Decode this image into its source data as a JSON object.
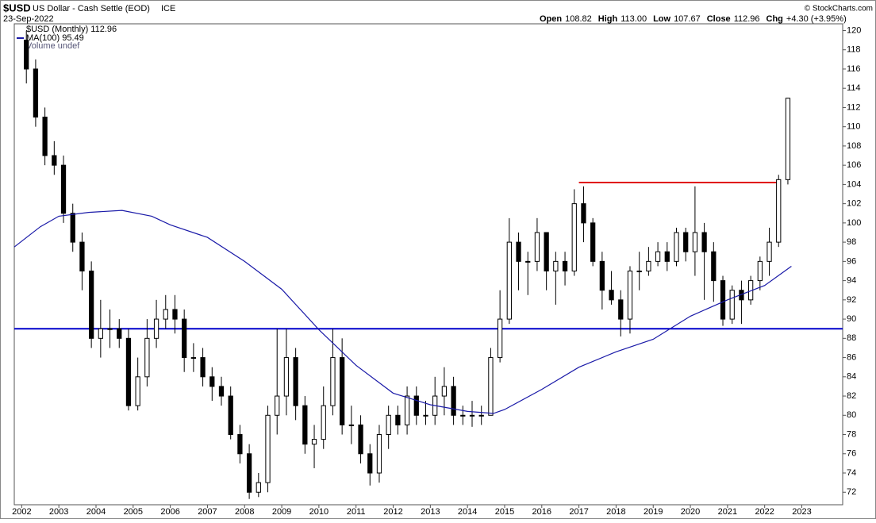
{
  "header": {
    "symbol": "$USD",
    "name": "US Dollar - Cash Settle (EOD)",
    "exchange": "ICE",
    "date": "23-Sep-2022",
    "quote": [
      {
        "label": "Open",
        "value": "108.82"
      },
      {
        "label": "High",
        "value": "113.00"
      },
      {
        "label": "Low",
        "value": "107.67"
      },
      {
        "label": "Close",
        "value": "112.96"
      },
      {
        "label": "Chg",
        "value": "+4.30 (+3.95%)"
      }
    ],
    "copyright": "© StockCharts.com",
    "legend": [
      "$USD (Monthly) 112.96",
      "MA(100) 95.49",
      "Volume undef"
    ]
  },
  "chart_data": {
    "type": "candlestick",
    "x": [
      2002.125,
      2002.375,
      2002.625,
      2002.875,
      2003.125,
      2003.375,
      2003.625,
      2003.875,
      2004.125,
      2004.375,
      2004.625,
      2004.875,
      2005.125,
      2005.375,
      2005.625,
      2005.875,
      2006.125,
      2006.375,
      2006.625,
      2006.875,
      2007.125,
      2007.375,
      2007.625,
      2007.875,
      2008.125,
      2008.375,
      2008.625,
      2008.875,
      2009.125,
      2009.375,
      2009.625,
      2009.875,
      2010.125,
      2010.375,
      2010.625,
      2010.875,
      2011.125,
      2011.375,
      2011.625,
      2011.875,
      2012.125,
      2012.375,
      2012.625,
      2012.875,
      2013.125,
      2013.375,
      2013.625,
      2013.875,
      2014.125,
      2014.375,
      2014.625,
      2014.875,
      2015.125,
      2015.375,
      2015.625,
      2015.875,
      2016.125,
      2016.375,
      2016.625,
      2016.875,
      2017.125,
      2017.375,
      2017.625,
      2017.875,
      2018.125,
      2018.375,
      2018.625,
      2018.875,
      2019.125,
      2019.375,
      2019.625,
      2019.875,
      2020.125,
      2020.375,
      2020.625,
      2020.875,
      2021.125,
      2021.375,
      2021.625,
      2021.875,
      2022.125,
      2022.375,
      2022.625
    ],
    "open": [
      119,
      116,
      111,
      107,
      106,
      101,
      98,
      95,
      88,
      89,
      89,
      88,
      81,
      84,
      88,
      90,
      91,
      90,
      86,
      86,
      84,
      83,
      82,
      78,
      76,
      72,
      73,
      80,
      82,
      86,
      81,
      77,
      77.5,
      81,
      86,
      79,
      79,
      76,
      74,
      78,
      80,
      79,
      82,
      80,
      80,
      82,
      83,
      80,
      80,
      80,
      80,
      86,
      90,
      98,
      96,
      96,
      99,
      95,
      96,
      95,
      102,
      100,
      96,
      93,
      92,
      90,
      95,
      95,
      96,
      97,
      96,
      99,
      97,
      99,
      97,
      94,
      90,
      93,
      92,
      94,
      96,
      98,
      104.5
    ],
    "high": [
      120,
      117,
      112,
      108.5,
      107,
      102,
      99,
      96,
      92,
      91,
      90,
      89,
      86,
      90,
      92,
      92.5,
      92.5,
      91,
      87.5,
      87,
      85,
      84,
      83,
      79,
      77,
      74,
      81,
      89,
      89,
      87,
      82,
      79,
      83,
      89,
      88,
      81,
      80,
      77,
      79,
      81,
      81,
      83,
      83,
      81.5,
      84,
      85,
      84,
      81,
      81.5,
      81,
      87,
      93,
      100.5,
      99,
      97,
      100.5,
      99,
      97,
      97,
      103.5,
      103.8,
      100.5,
      97,
      95,
      93,
      95.5,
      97,
      97.5,
      98,
      98,
      99.5,
      99.5,
      103.8,
      100,
      98,
      94.5,
      93.5,
      94,
      94.5,
      96.5,
      99.5,
      105,
      113
    ],
    "low": [
      114.5,
      110,
      106,
      105,
      100,
      97,
      93,
      87,
      86,
      87,
      87,
      80.5,
      80.5,
      83,
      87,
      89,
      88.5,
      84.5,
      84.5,
      83,
      81.5,
      81,
      77.5,
      75,
      71.3,
      71.5,
      72,
      78,
      80,
      79.5,
      76,
      74.5,
      76.5,
      80,
      78,
      77,
      75,
      72.7,
      73,
      76.5,
      78,
      78,
      79,
      79,
      79,
      80,
      79,
      79,
      78.8,
      79,
      80,
      85.5,
      89.5,
      93,
      92.5,
      95,
      93,
      91.5,
      93.5,
      94.5,
      98,
      95.5,
      91,
      91.5,
      88.2,
      88.5,
      93,
      94.5,
      95.5,
      95,
      95.5,
      96,
      94.5,
      92,
      91.8,
      89.3,
      89.5,
      89.5,
      91.5,
      93,
      94.5,
      97.5,
      104
    ],
    "close": [
      116,
      111,
      107,
      106,
      101,
      98,
      95,
      88,
      89,
      89,
      88,
      81,
      84,
      88,
      90,
      91,
      90,
      86,
      86,
      84,
      83,
      82,
      78,
      76,
      72,
      73,
      80,
      82,
      86,
      81,
      77,
      77.5,
      81,
      86,
      79,
      79,
      76,
      74,
      78,
      80,
      79,
      82,
      80,
      80,
      82,
      83,
      80,
      80,
      80,
      80,
      86,
      90,
      98,
      96,
      96,
      99,
      95,
      96,
      95,
      102,
      100,
      96,
      93,
      92,
      90,
      95,
      95,
      96,
      97,
      96,
      99,
      97,
      99,
      97,
      94,
      90,
      93,
      92,
      94,
      96,
      98,
      104.5,
      112.96
    ],
    "ma": {
      "color": "#1a1aa8",
      "x": [
        2001.8,
        2002.5,
        2003,
        2003.8,
        2004.7,
        2005.5,
        2006,
        2007,
        2008,
        2009,
        2010,
        2011,
        2012,
        2013,
        2014,
        2014.7,
        2015,
        2016,
        2017,
        2018,
        2019,
        2020,
        2021,
        2022,
        2022.72
      ],
      "values": [
        97.5,
        99.6,
        100.7,
        101.1,
        101.3,
        100.7,
        99.8,
        98.5,
        96,
        93.1,
        88.9,
        85.2,
        82.3,
        81.1,
        80.4,
        80.2,
        80.6,
        82.7,
        85,
        86.6,
        87.9,
        90.3,
        92,
        93.5,
        95.49
      ]
    },
    "hlines": [
      {
        "value": 89,
        "color": "#0000cc",
        "from": 2001.8,
        "to": 2024.1
      },
      {
        "value": 104.2,
        "color": "#e00000",
        "from": 2017,
        "to": 2022.4
      }
    ],
    "xlim": [
      2001.8,
      2024.1
    ],
    "ylim": [
      70.7,
      120.7
    ],
    "xticks": [
      2002,
      2003,
      2004,
      2005,
      2006,
      2007,
      2008,
      2009,
      2010,
      2011,
      2012,
      2013,
      2014,
      2015,
      2016,
      2017,
      2018,
      2019,
      2020,
      2021,
      2022,
      2023
    ],
    "yticks": [
      72,
      74,
      76,
      78,
      80,
      82,
      84,
      86,
      88,
      90,
      92,
      94,
      96,
      98,
      100,
      102,
      104,
      106,
      108,
      110,
      112,
      114,
      116,
      118,
      120
    ]
  }
}
